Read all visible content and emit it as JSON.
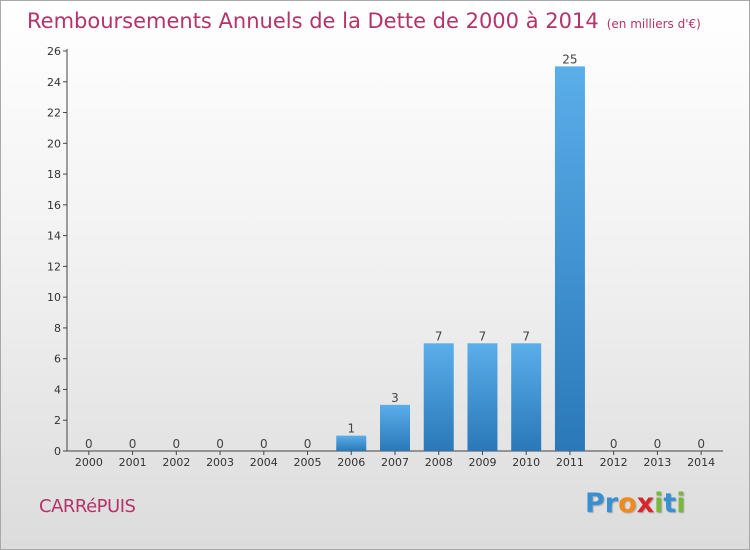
{
  "title": "Remboursements Annuels de la Dette de 2000 à 2014",
  "unit_note": "(en milliers d'€)",
  "commune": "CARRéPUIS",
  "brand": {
    "letters": [
      "P",
      "r",
      "o",
      "x",
      "i",
      "t",
      "i"
    ],
    "colors": [
      "#3a8fd0",
      "#3a8fd0",
      "#f08a1c",
      "#d9262a",
      "#7ab83d",
      "#3a8fd0",
      "#7ab83d"
    ]
  },
  "colors": {
    "bar_top": "#5aaeea",
    "bar_bottom": "#2a78b8",
    "title": "#b5336a"
  },
  "chart_data": {
    "type": "bar",
    "title": "Remboursements Annuels de la Dette de 2000 à 2014",
    "ylabel": "(en milliers d'€)",
    "categories": [
      "2000",
      "2001",
      "2002",
      "2003",
      "2004",
      "2005",
      "2006",
      "2007",
      "2008",
      "2009",
      "2010",
      "2011",
      "2012",
      "2013",
      "2014"
    ],
    "values": [
      0,
      0,
      0,
      0,
      0,
      0,
      1,
      3,
      7,
      7,
      7,
      25,
      0,
      0,
      0
    ],
    "ylim": [
      0,
      26
    ],
    "yticks": [
      0,
      2,
      4,
      6,
      8,
      10,
      12,
      14,
      16,
      18,
      20,
      22,
      24,
      26
    ],
    "grid": false,
    "legend": "none"
  }
}
